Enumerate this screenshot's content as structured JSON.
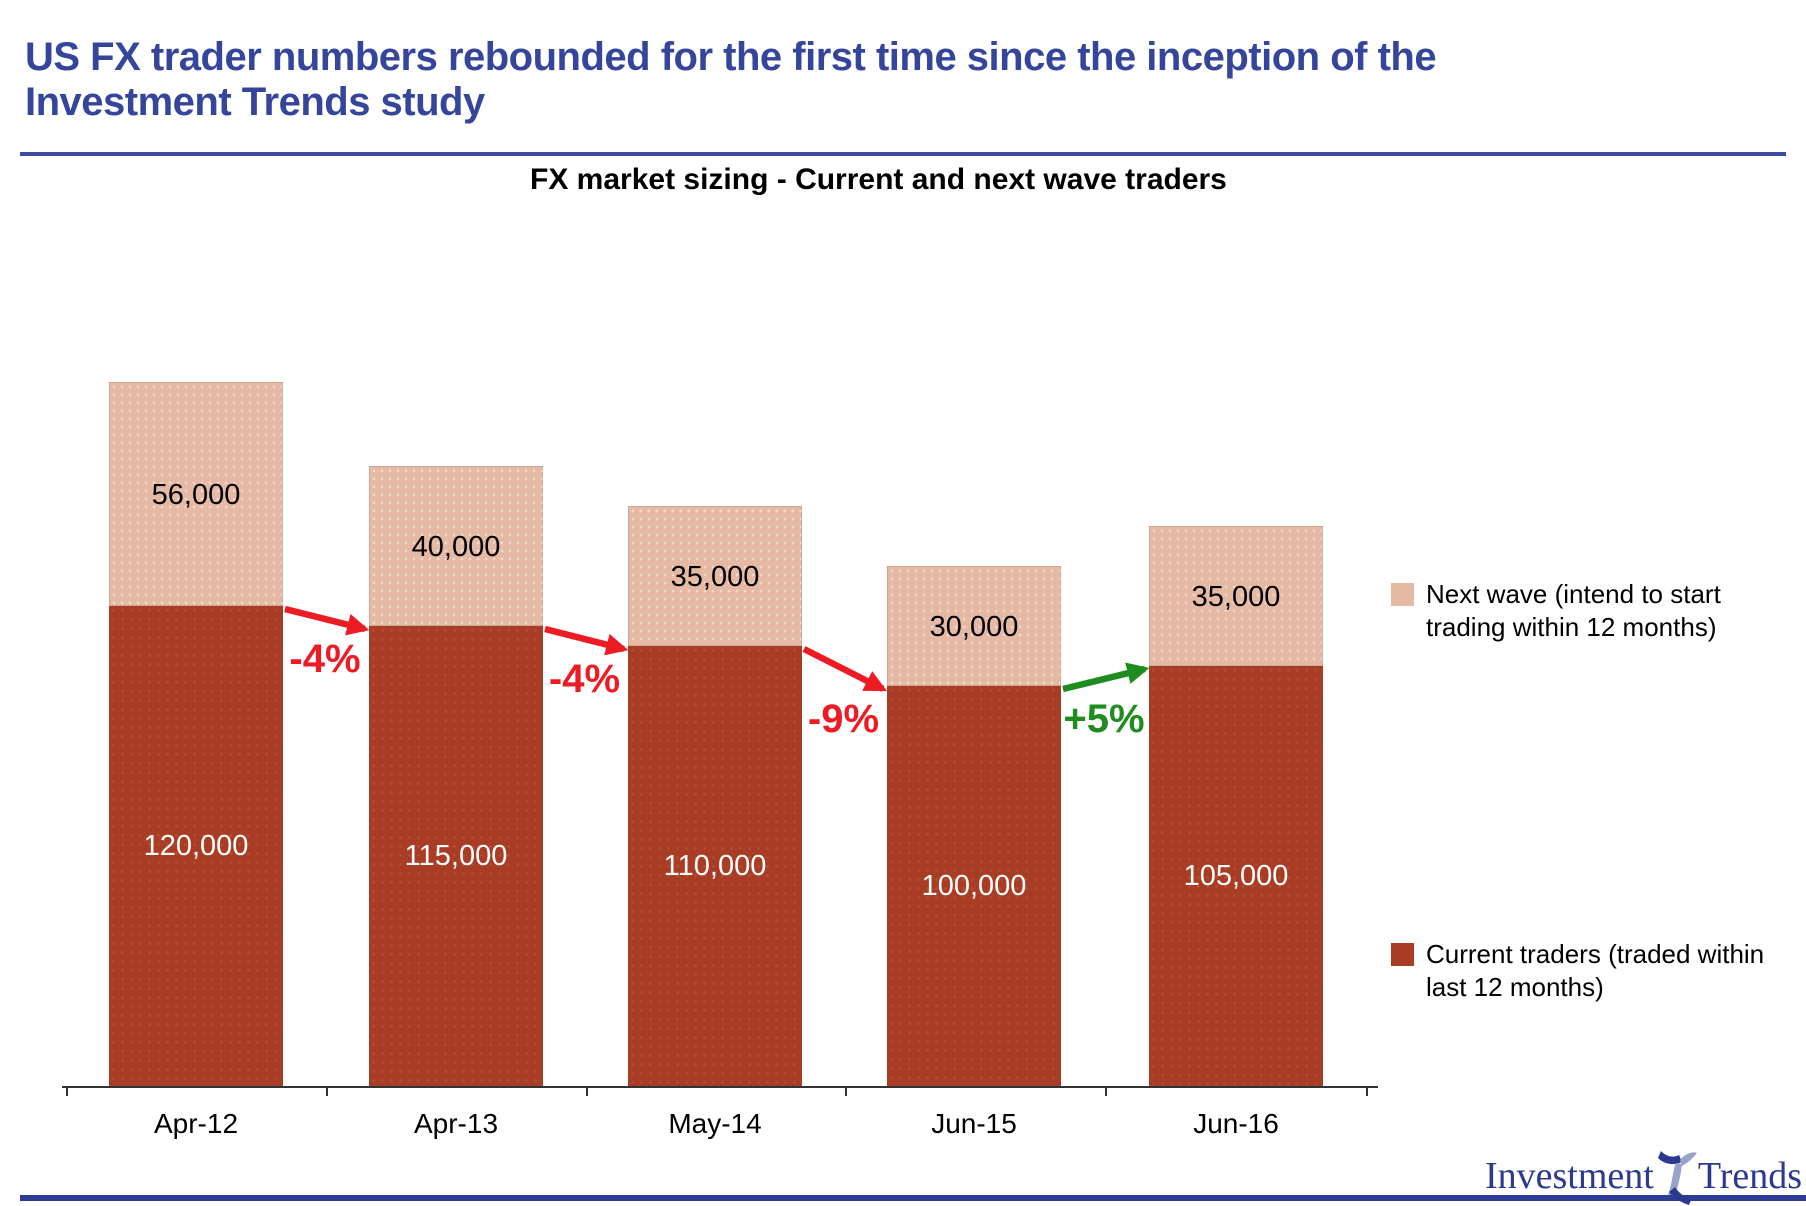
{
  "header": {
    "title_lines": [
      "US FX trader numbers rebounded for the first time since the inception of the",
      "Investment Trends study"
    ]
  },
  "chart_data": {
    "type": "bar",
    "stacked": true,
    "title": "FX market sizing - Current and next wave traders",
    "categories": [
      "Apr-12",
      "Apr-13",
      "May-14",
      "Jun-15",
      "Jun-16"
    ],
    "series": [
      {
        "name": "Current traders (traded within last 12 months)",
        "color": "#A93C25",
        "label_color": "#FFFFFF",
        "values": [
          120000,
          115000,
          110000,
          100000,
          105000
        ],
        "labels": [
          "120,000",
          "115,000",
          "110,000",
          "100,000",
          "105,000"
        ]
      },
      {
        "name": "Next wave (intend to start trading within 12 months)",
        "color": "#E6B9A4",
        "label_color": "#000000",
        "values": [
          56000,
          40000,
          35000,
          30000,
          35000
        ],
        "labels": [
          "56,000",
          "40,000",
          "35,000",
          "30,000",
          "35,000"
        ]
      }
    ],
    "annotations": [
      {
        "label": "-4%",
        "from": 0,
        "to": 1,
        "direction": "down",
        "color": "#ED1C24"
      },
      {
        "label": "-4%",
        "from": 1,
        "to": 2,
        "direction": "down",
        "color": "#ED1C24"
      },
      {
        "label": "-9%",
        "from": 2,
        "to": 3,
        "direction": "down",
        "color": "#ED1C24"
      },
      {
        "label": "+5%",
        "from": 3,
        "to": 4,
        "direction": "up",
        "color": "#1E8C1E"
      }
    ],
    "legend_position": "right",
    "grid": false,
    "y_axis_visible": false,
    "ylim": [
      0,
      190000
    ]
  },
  "footer": {
    "brand_word_1": "Investment",
    "brand_word_2": "Trends"
  },
  "colors": {
    "title_text": "#35459C",
    "divider": "#3A4BA3",
    "footer_rule": "#2E3C95",
    "brand_text": "#2B3A8F",
    "decrease": "#ED1C24",
    "increase": "#1E8C1E",
    "axis": "#333333",
    "current_bar": "#A93C25",
    "next_wave_bar": "#E6B9A4"
  }
}
